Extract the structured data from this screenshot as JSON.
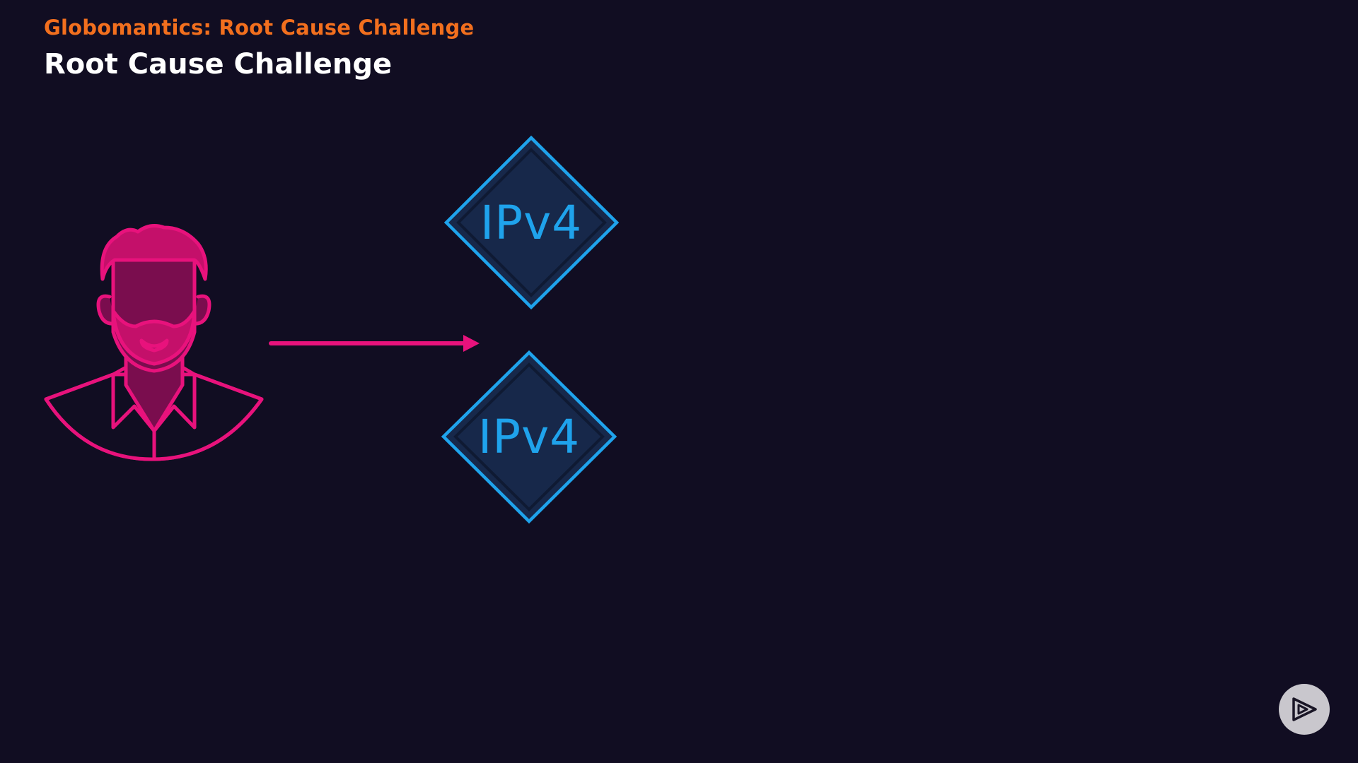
{
  "header": {
    "eyebrow": "Globomantics: Root Cause Challenge",
    "title": "Root Cause Challenge"
  },
  "diagram": {
    "nodes": [
      {
        "label": "IPv4"
      },
      {
        "label": "IPv4"
      }
    ]
  },
  "icons": {
    "user": "user-icon",
    "arrow": "arrow-right",
    "play": "play-logo-icon"
  },
  "colors": {
    "background": "#110d22",
    "eyebrow": "#f26f1e",
    "title": "#ffffff",
    "user_stroke": "#e8127c",
    "user_fill": "#7a0d4e",
    "arrow": "#e8127c",
    "node_stroke": "#1fa3ec",
    "node_fill": "#17284a",
    "node_text": "#1fa3ec",
    "play_button": "#c9c7cd"
  }
}
